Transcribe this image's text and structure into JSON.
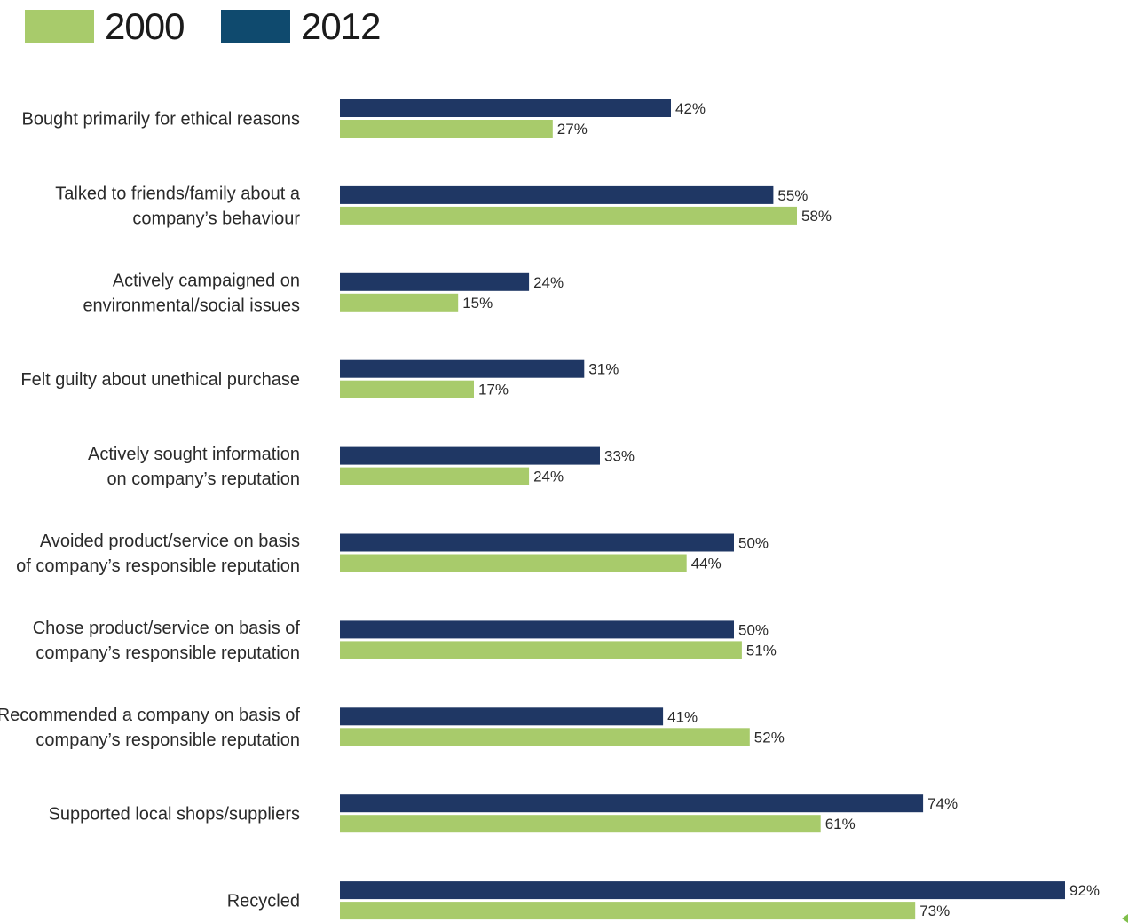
{
  "chart_data": {
    "type": "bar",
    "orientation": "horizontal",
    "categories": [
      [
        "Bought primarily for ethical reasons"
      ],
      [
        "Talked to friends/family about a",
        "company’s behaviour"
      ],
      [
        "Actively campaigned on",
        "environmental/social issues"
      ],
      [
        "Felt guilty about unethical purchase"
      ],
      [
        "Actively sought information",
        "on company’s reputation"
      ],
      [
        "Avoided product/service on basis",
        "of company’s responsible reputation"
      ],
      [
        "Chose product/service on basis of",
        "company’s responsible reputation"
      ],
      [
        "Recommended a company on basis of",
        "company’s responsible reputation"
      ],
      [
        "Supported local shops/suppliers"
      ],
      [
        "Recycled"
      ]
    ],
    "series": [
      {
        "name": "2012",
        "color": "#1f3764",
        "values": [
          42,
          55,
          24,
          31,
          33,
          50,
          50,
          41,
          74,
          92
        ],
        "labels": [
          "42%",
          "55%",
          "24%",
          "31%",
          "33%",
          "50%",
          "50%",
          "41%",
          "74%",
          "92%"
        ]
      },
      {
        "name": "2000",
        "color": "#a8cb6b",
        "values": [
          27,
          58,
          15,
          17,
          24,
          44,
          51,
          52,
          61,
          73
        ],
        "labels": [
          "27%",
          "58%",
          "15%",
          "17%",
          "24%",
          "44%",
          "51%",
          "52%",
          "61%",
          "73%"
        ]
      }
    ],
    "legend": {
      "position": "top-left",
      "items": [
        {
          "name": "2000",
          "color": "#a8cb6b"
        },
        {
          "name": "2012",
          "color": "#0f4a6e"
        }
      ]
    },
    "xlim": [
      0,
      100
    ],
    "grid": false,
    "title": "",
    "xlabel": "",
    "ylabel": ""
  }
}
